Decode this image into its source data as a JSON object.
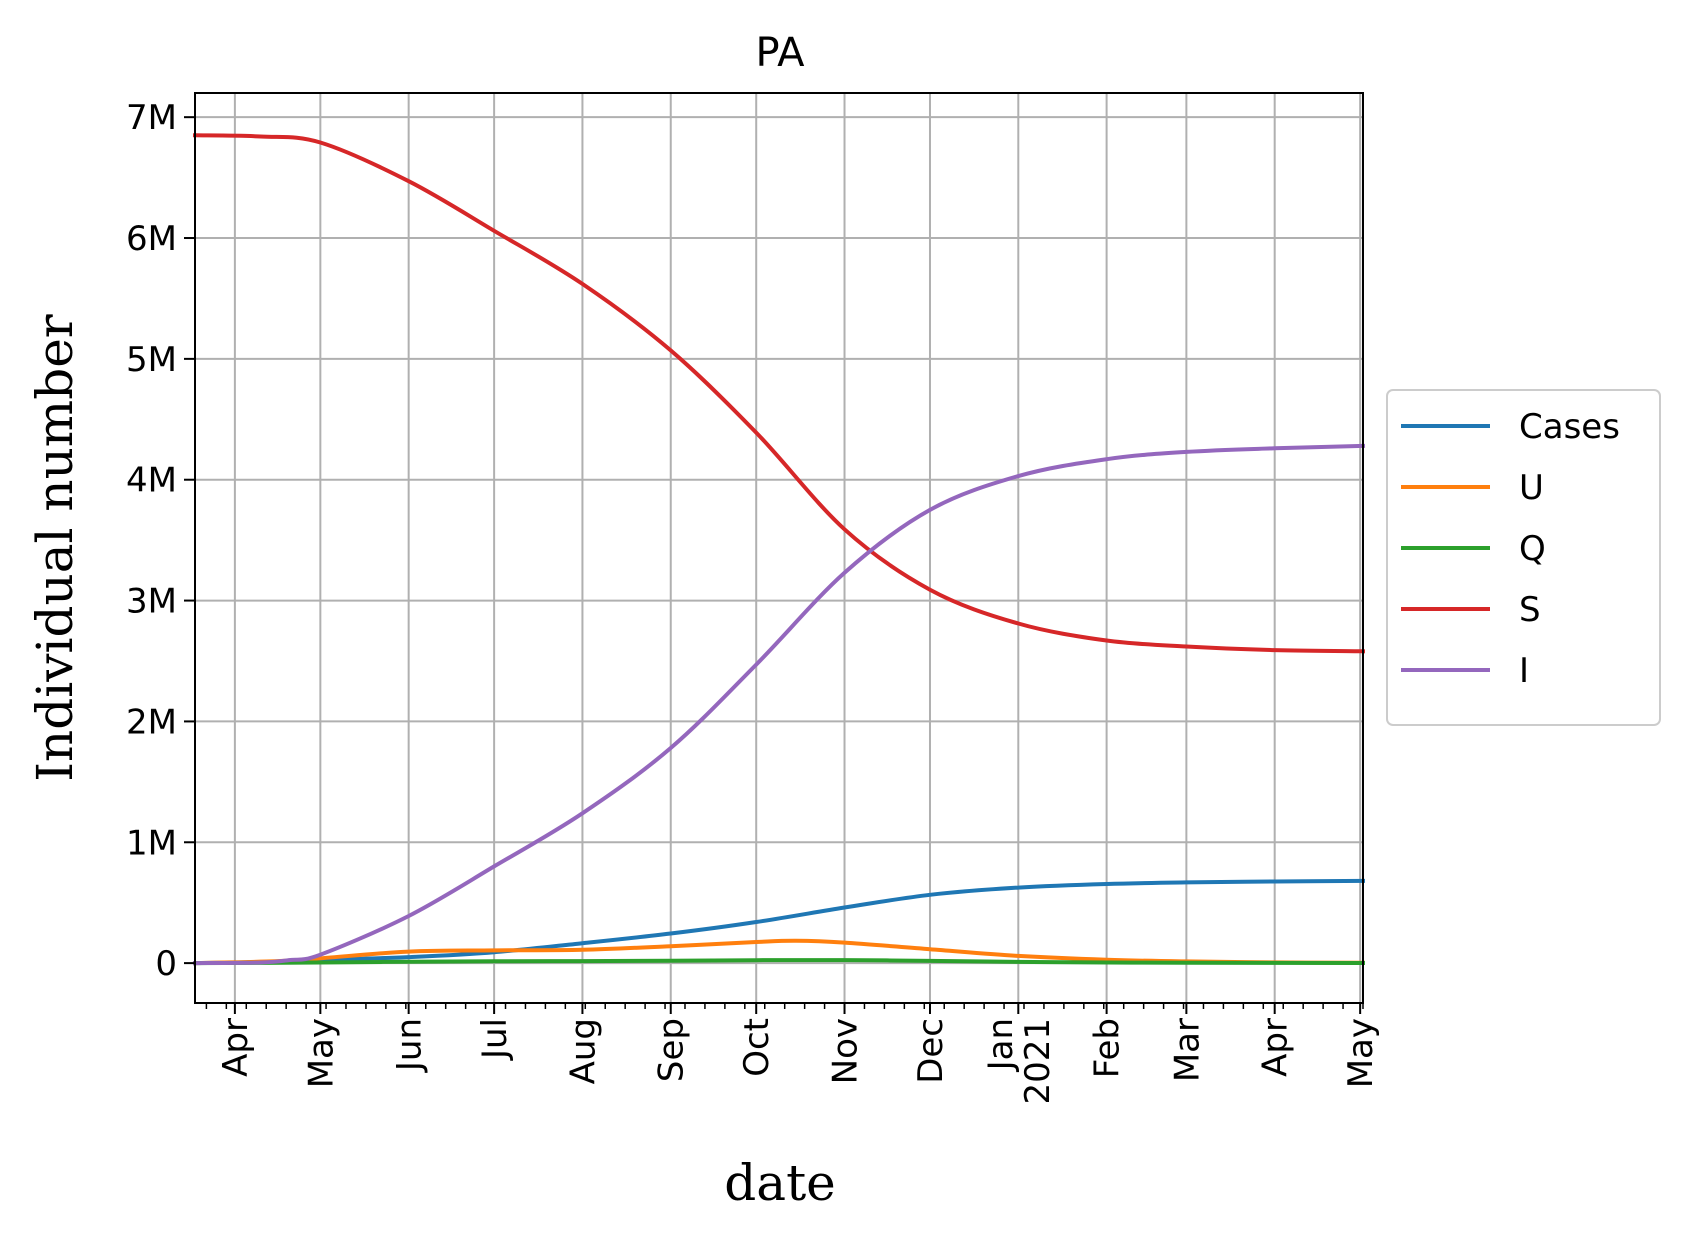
{
  "chart_data": {
    "type": "line",
    "title": "PA",
    "xlabel": "date",
    "ylabel": "Individual number",
    "x_axis": {
      "kind": "date",
      "range": [
        "2020-03-18",
        "2021-05-02"
      ],
      "tick_dates": [
        "2020-04-01",
        "2020-05-01",
        "2020-06-01",
        "2020-07-01",
        "2020-08-01",
        "2020-09-01",
        "2020-10-01",
        "2020-11-01",
        "2020-12-01",
        "2021-01-01",
        "2021-02-01",
        "2021-03-01",
        "2021-04-01",
        "2021-05-01"
      ],
      "tick_labels": [
        "Apr",
        "May",
        "Jun",
        "Jul",
        "Aug",
        "Sep",
        "Oct",
        "Nov",
        "Dec",
        "Jan\n2021",
        "Feb",
        "Mar",
        "Apr",
        "May"
      ]
    },
    "y_axis": {
      "range": [
        -330000,
        7200000
      ],
      "ticks": [
        0,
        1000000,
        2000000,
        3000000,
        4000000,
        5000000,
        6000000,
        7000000
      ],
      "tick_labels": [
        "0",
        "1M",
        "2M",
        "3M",
        "4M",
        "5M",
        "6M",
        "7M"
      ]
    },
    "grid": true,
    "legend_position": "outside-right",
    "series": [
      {
        "name": "Cases",
        "color": "#1f77b4",
        "points": [
          [
            "2020-03-18",
            0
          ],
          [
            "2020-04-15",
            10000
          ],
          [
            "2020-05-01",
            25000
          ],
          [
            "2020-06-01",
            50000
          ],
          [
            "2020-07-01",
            90000
          ],
          [
            "2020-08-01",
            165000
          ],
          [
            "2020-09-01",
            245000
          ],
          [
            "2020-10-01",
            340000
          ],
          [
            "2020-11-01",
            460000
          ],
          [
            "2020-12-01",
            565000
          ],
          [
            "2021-01-01",
            625000
          ],
          [
            "2021-02-01",
            655000
          ],
          [
            "2021-03-01",
            668000
          ],
          [
            "2021-04-01",
            675000
          ],
          [
            "2021-05-02",
            680000
          ]
        ]
      },
      {
        "name": "U",
        "color": "#ff7f0e",
        "points": [
          [
            "2020-03-18",
            0
          ],
          [
            "2020-04-15",
            15000
          ],
          [
            "2020-05-01",
            40000
          ],
          [
            "2020-06-01",
            95000
          ],
          [
            "2020-07-01",
            105000
          ],
          [
            "2020-08-01",
            110000
          ],
          [
            "2020-09-01",
            140000
          ],
          [
            "2020-10-01",
            175000
          ],
          [
            "2020-10-15",
            185000
          ],
          [
            "2020-11-01",
            170000
          ],
          [
            "2020-12-01",
            115000
          ],
          [
            "2021-01-01",
            60000
          ],
          [
            "2021-02-01",
            28000
          ],
          [
            "2021-03-01",
            14000
          ],
          [
            "2021-04-01",
            6000
          ],
          [
            "2021-05-02",
            3000
          ]
        ]
      },
      {
        "name": "Q",
        "color": "#2ca02c",
        "points": [
          [
            "2020-03-18",
            0
          ],
          [
            "2020-05-01",
            5000
          ],
          [
            "2020-06-01",
            12000
          ],
          [
            "2020-07-01",
            15000
          ],
          [
            "2020-08-01",
            17000
          ],
          [
            "2020-09-01",
            20000
          ],
          [
            "2020-10-01",
            24000
          ],
          [
            "2020-11-01",
            25000
          ],
          [
            "2020-12-01",
            18000
          ],
          [
            "2021-01-01",
            10000
          ],
          [
            "2021-02-01",
            5000
          ],
          [
            "2021-03-01",
            3000
          ],
          [
            "2021-05-02",
            1000
          ]
        ]
      },
      {
        "name": "S",
        "color": "#d62728",
        "points": [
          [
            "2020-03-18",
            6850000
          ],
          [
            "2020-04-10",
            6840000
          ],
          [
            "2020-05-01",
            6790000
          ],
          [
            "2020-06-01",
            6470000
          ],
          [
            "2020-07-01",
            6060000
          ],
          [
            "2020-08-01",
            5620000
          ],
          [
            "2020-09-01",
            5070000
          ],
          [
            "2020-10-01",
            4390000
          ],
          [
            "2020-11-01",
            3590000
          ],
          [
            "2020-12-01",
            3090000
          ],
          [
            "2021-01-01",
            2810000
          ],
          [
            "2021-02-01",
            2670000
          ],
          [
            "2021-03-01",
            2620000
          ],
          [
            "2021-04-01",
            2590000
          ],
          [
            "2021-05-02",
            2580000
          ]
        ]
      },
      {
        "name": "I",
        "color": "#9467bd",
        "points": [
          [
            "2020-03-18",
            0
          ],
          [
            "2020-04-10",
            5000
          ],
          [
            "2020-04-20",
            25000
          ],
          [
            "2020-05-01",
            70000
          ],
          [
            "2020-06-01",
            390000
          ],
          [
            "2020-07-01",
            800000
          ],
          [
            "2020-08-01",
            1240000
          ],
          [
            "2020-09-01",
            1780000
          ],
          [
            "2020-10-01",
            2470000
          ],
          [
            "2020-11-01",
            3230000
          ],
          [
            "2020-12-01",
            3750000
          ],
          [
            "2021-01-01",
            4030000
          ],
          [
            "2021-02-01",
            4170000
          ],
          [
            "2021-03-01",
            4230000
          ],
          [
            "2021-04-01",
            4260000
          ],
          [
            "2021-05-02",
            4280000
          ]
        ]
      }
    ]
  }
}
